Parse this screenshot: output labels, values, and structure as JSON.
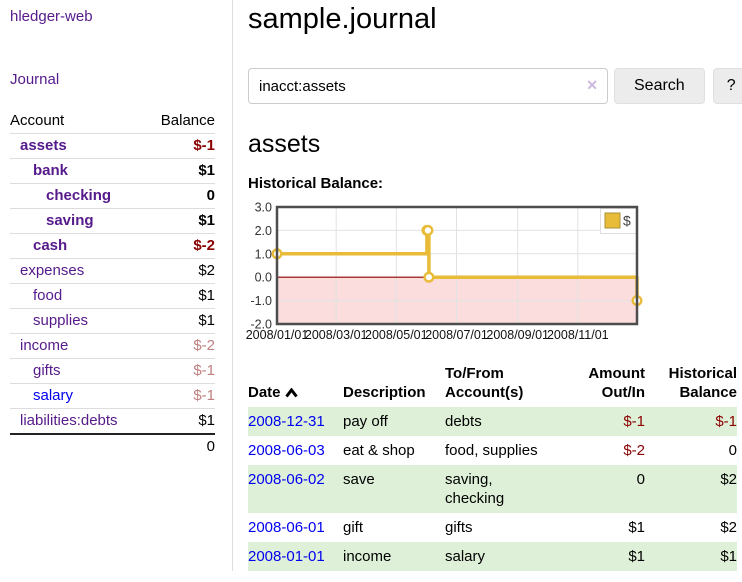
{
  "colors": {
    "link_purple": "#551a8b",
    "link_blue": "#0000ee",
    "negative_strong": "#8b0000",
    "negative_muted": "#bf7f7f",
    "stripe_green": "#dff0d8",
    "chart_line_gold": "#e8bb39",
    "chart_negative_fill": "#fbdddd",
    "chart_zero_line": "#8b0000"
  },
  "sidebar": {
    "brand": "hledger-web",
    "nav": [
      {
        "label": "Journal"
      }
    ],
    "headers": {
      "account": "Account",
      "balance": "Balance"
    },
    "accounts": [
      {
        "name": "assets",
        "balance": "$-1",
        "level": 1,
        "bold": true,
        "negative": true
      },
      {
        "name": "bank",
        "balance": "$1",
        "level": 2,
        "bold": true,
        "negative": false
      },
      {
        "name": "checking",
        "balance": "0",
        "level": 3,
        "bold": true,
        "negative": false
      },
      {
        "name": "saving",
        "balance": "$1",
        "level": 3,
        "bold": true,
        "negative": false
      },
      {
        "name": "cash",
        "balance": "$-2",
        "level": 2,
        "bold": true,
        "negative": true
      },
      {
        "name": "expenses",
        "balance": "$2",
        "level": 1,
        "bold": false,
        "negative": false
      },
      {
        "name": "food",
        "balance": "$1",
        "level": 2,
        "bold": false,
        "negative": false
      },
      {
        "name": "supplies",
        "balance": "$1",
        "level": 2,
        "bold": false,
        "negative": false
      },
      {
        "name": "income",
        "balance": "$-2",
        "level": 1,
        "bold": false,
        "negative": true
      },
      {
        "name": "gifts",
        "balance": "$-1",
        "level": 2,
        "bold": false,
        "negative": true
      },
      {
        "name": "salary",
        "balance": "$-1",
        "level": 2,
        "bold": false,
        "negative": true,
        "unvisited": true
      },
      {
        "name": "liabilities:debts",
        "balance": "$1",
        "level": 1,
        "bold": false,
        "negative": false
      }
    ],
    "total": "0"
  },
  "header": {
    "title": "sample.journal"
  },
  "search": {
    "value": "inacct:assets",
    "clear_icon": "✕",
    "submit_label": "Search",
    "help_label": "?"
  },
  "account_view": {
    "heading": "assets",
    "section_label": "Historical Balance:"
  },
  "chart_data": {
    "type": "line",
    "step": true,
    "title": "Historical Balance",
    "legend": [
      {
        "label": "$",
        "color": "#e8bb39"
      }
    ],
    "legend_position": "top-right",
    "grid": true,
    "negative_region_shaded": true,
    "ylim": [
      -2,
      3
    ],
    "y_tick_labels": [
      "3.0",
      "2.0",
      "1.0",
      "0.0",
      "-1.0",
      "-2.0"
    ],
    "x_start": "2008-01-01",
    "x_end": "2008-12-31",
    "x_tick_labels": [
      "2008/01/01",
      "2008/03/01",
      "2008/05/01",
      "2008/07/01",
      "2008/09/01",
      "2008/11/01"
    ],
    "series": [
      {
        "name": "$",
        "points": [
          {
            "date": "2008-01-01",
            "value": 1
          },
          {
            "date": "2008-06-01",
            "value": 2
          },
          {
            "date": "2008-06-02",
            "value": 2
          },
          {
            "date": "2008-06-03",
            "value": 0
          },
          {
            "date": "2008-12-31",
            "value": -1
          }
        ]
      }
    ]
  },
  "register": {
    "headers": [
      "Date",
      "Description",
      "To/From Account(s)",
      "Amount Out/In",
      "Historical Balance"
    ],
    "sort_column": "Date",
    "sort_direction": "ascending",
    "rows": [
      {
        "date": "2008-12-31",
        "description": "pay off",
        "accounts": "debts",
        "amount": "$-1",
        "balance": "$-1"
      },
      {
        "date": "2008-06-03",
        "description": "eat & shop",
        "accounts": "food, supplies",
        "amount": "$-2",
        "balance": "0"
      },
      {
        "date": "2008-06-02",
        "description": "save",
        "accounts": "saving, checking",
        "amount": "0",
        "balance": "$2"
      },
      {
        "date": "2008-06-01",
        "description": "gift",
        "accounts": "gifts",
        "amount": "$1",
        "balance": "$2"
      },
      {
        "date": "2008-01-01",
        "description": "income",
        "accounts": "salary",
        "amount": "$1",
        "balance": "$1"
      }
    ]
  }
}
